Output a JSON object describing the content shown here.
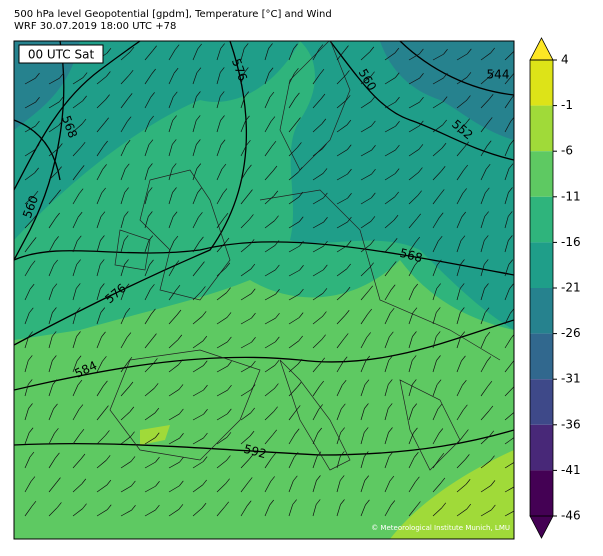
{
  "header": {
    "line1": "500 hPa level Geopotential [gpdm], Temperature [°C] and Wind",
    "line2": "WRF 30.07.2019 18:00 UTC +78"
  },
  "time_label": "00 UTC Sat",
  "contour_labels": [
    "576",
    "560",
    "544",
    "552",
    "568",
    "560",
    "568",
    "576",
    "584",
    "592"
  ],
  "colorbar": {
    "ticks": [
      4,
      -1,
      -6,
      -11,
      -16,
      -21,
      -26,
      -31,
      -36,
      -41,
      -46
    ],
    "colors": [
      "#dde318",
      "#a0da39",
      "#5ec962",
      "#2fb47c",
      "#1f9e89",
      "#26828e",
      "#31688e",
      "#3e4989",
      "#482878",
      "#440154"
    ],
    "over_color": "#fde725",
    "under_color": "#440154"
  },
  "copyright": "© Meteorological Institute Munich, LMU"
}
